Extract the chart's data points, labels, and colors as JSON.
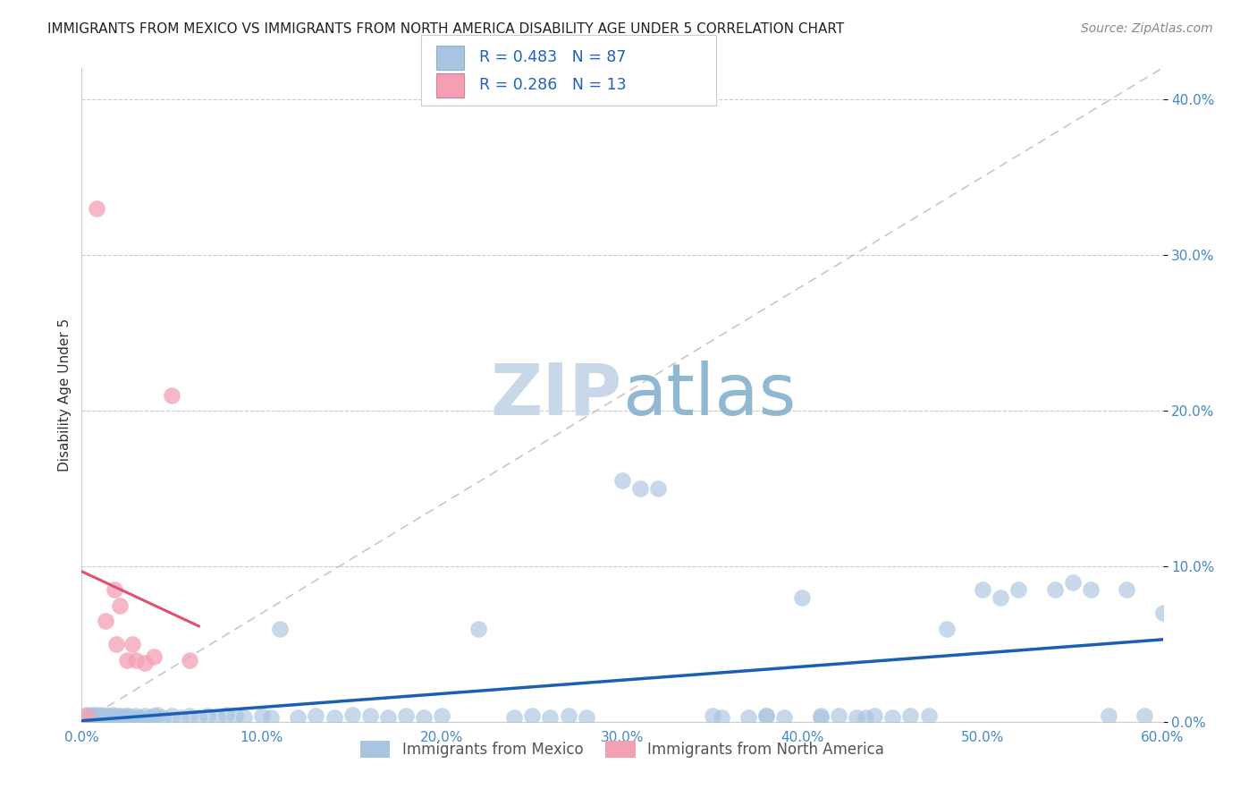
{
  "title": "IMMIGRANTS FROM MEXICO VS IMMIGRANTS FROM NORTH AMERICA DISABILITY AGE UNDER 5 CORRELATION CHART",
  "source": "Source: ZipAtlas.com",
  "ylabel": "Disability Age Under 5",
  "legend_label1": "Immigrants from Mexico",
  "legend_label2": "Immigrants from North America",
  "R1": 0.483,
  "N1": 87,
  "R2": 0.286,
  "N2": 13,
  "xlim": [
    0.0,
    0.6
  ],
  "ylim": [
    0.0,
    0.42
  ],
  "xticks": [
    0.0,
    0.1,
    0.2,
    0.3,
    0.4,
    0.5,
    0.6
  ],
  "xtick_labels": [
    "0.0%",
    "10.0%",
    "20.0%",
    "30.0%",
    "40.0%",
    "50.0%",
    "60.0%"
  ],
  "yticks": [
    0.0,
    0.1,
    0.2,
    0.3,
    0.4
  ],
  "ytick_labels": [
    "0.0%",
    "10.0%",
    "20.0%",
    "30.0%",
    "40.0%"
  ],
  "color_mexico": "#a8c4e0",
  "color_north_america": "#f4a0b4",
  "trendline_color_mexico": "#1a5fb4",
  "trendline_color_north_america": "#e05070",
  "background_color": "#ffffff",
  "watermark_zip": "ZIP",
  "watermark_atlas": "atlas",
  "watermark_color_zip": "#c8d8e8",
  "watermark_color_atlas": "#90b8d0",
  "mexico_x": [
    0.003,
    0.005,
    0.006,
    0.007,
    0.008,
    0.009,
    0.01,
    0.011,
    0.012,
    0.013,
    0.014,
    0.015,
    0.016,
    0.017,
    0.018,
    0.019,
    0.02,
    0.021,
    0.022,
    0.024,
    0.025,
    0.026,
    0.028,
    0.03,
    0.032,
    0.035,
    0.038,
    0.04,
    0.042,
    0.045,
    0.05,
    0.055,
    0.06,
    0.065,
    0.07,
    0.075,
    0.08,
    0.085,
    0.09,
    0.1,
    0.105,
    0.11,
    0.12,
    0.13,
    0.14,
    0.15,
    0.16,
    0.17,
    0.18,
    0.19,
    0.2,
    0.22,
    0.24,
    0.25,
    0.26,
    0.27,
    0.28,
    0.3,
    0.31,
    0.32,
    0.35,
    0.37,
    0.38,
    0.4,
    0.41,
    0.42,
    0.43,
    0.44,
    0.45,
    0.47,
    0.48,
    0.5,
    0.51,
    0.52,
    0.54,
    0.55,
    0.56,
    0.57,
    0.58,
    0.59,
    0.6,
    0.355,
    0.38,
    0.39,
    0.41,
    0.435,
    0.46
  ],
  "mexico_y": [
    0.005,
    0.004,
    0.005,
    0.004,
    0.005,
    0.003,
    0.004,
    0.005,
    0.003,
    0.004,
    0.003,
    0.004,
    0.003,
    0.005,
    0.003,
    0.004,
    0.003,
    0.004,
    0.003,
    0.004,
    0.003,
    0.004,
    0.003,
    0.004,
    0.003,
    0.004,
    0.003,
    0.004,
    0.005,
    0.003,
    0.004,
    0.003,
    0.004,
    0.003,
    0.004,
    0.003,
    0.005,
    0.004,
    0.003,
    0.004,
    0.003,
    0.06,
    0.003,
    0.004,
    0.003,
    0.005,
    0.004,
    0.003,
    0.004,
    0.003,
    0.004,
    0.06,
    0.003,
    0.004,
    0.003,
    0.004,
    0.003,
    0.155,
    0.15,
    0.15,
    0.004,
    0.003,
    0.004,
    0.08,
    0.003,
    0.004,
    0.003,
    0.004,
    0.003,
    0.004,
    0.06,
    0.085,
    0.08,
    0.085,
    0.085,
    0.09,
    0.085,
    0.004,
    0.085,
    0.004,
    0.07,
    0.003,
    0.004,
    0.003,
    0.004,
    0.003,
    0.004
  ],
  "north_america_x": [
    0.003,
    0.008,
    0.013,
    0.018,
    0.019,
    0.021,
    0.025,
    0.028,
    0.03,
    0.035,
    0.04,
    0.05,
    0.06
  ],
  "north_america_y": [
    0.004,
    0.33,
    0.065,
    0.085,
    0.05,
    0.075,
    0.04,
    0.05,
    0.04,
    0.038,
    0.042,
    0.21,
    0.04
  ],
  "trendline_na_x0": 0.0,
  "trendline_na_x1": 0.065,
  "ref_line_x": [
    0.0,
    0.6
  ],
  "ref_line_y": [
    0.0,
    0.42
  ]
}
